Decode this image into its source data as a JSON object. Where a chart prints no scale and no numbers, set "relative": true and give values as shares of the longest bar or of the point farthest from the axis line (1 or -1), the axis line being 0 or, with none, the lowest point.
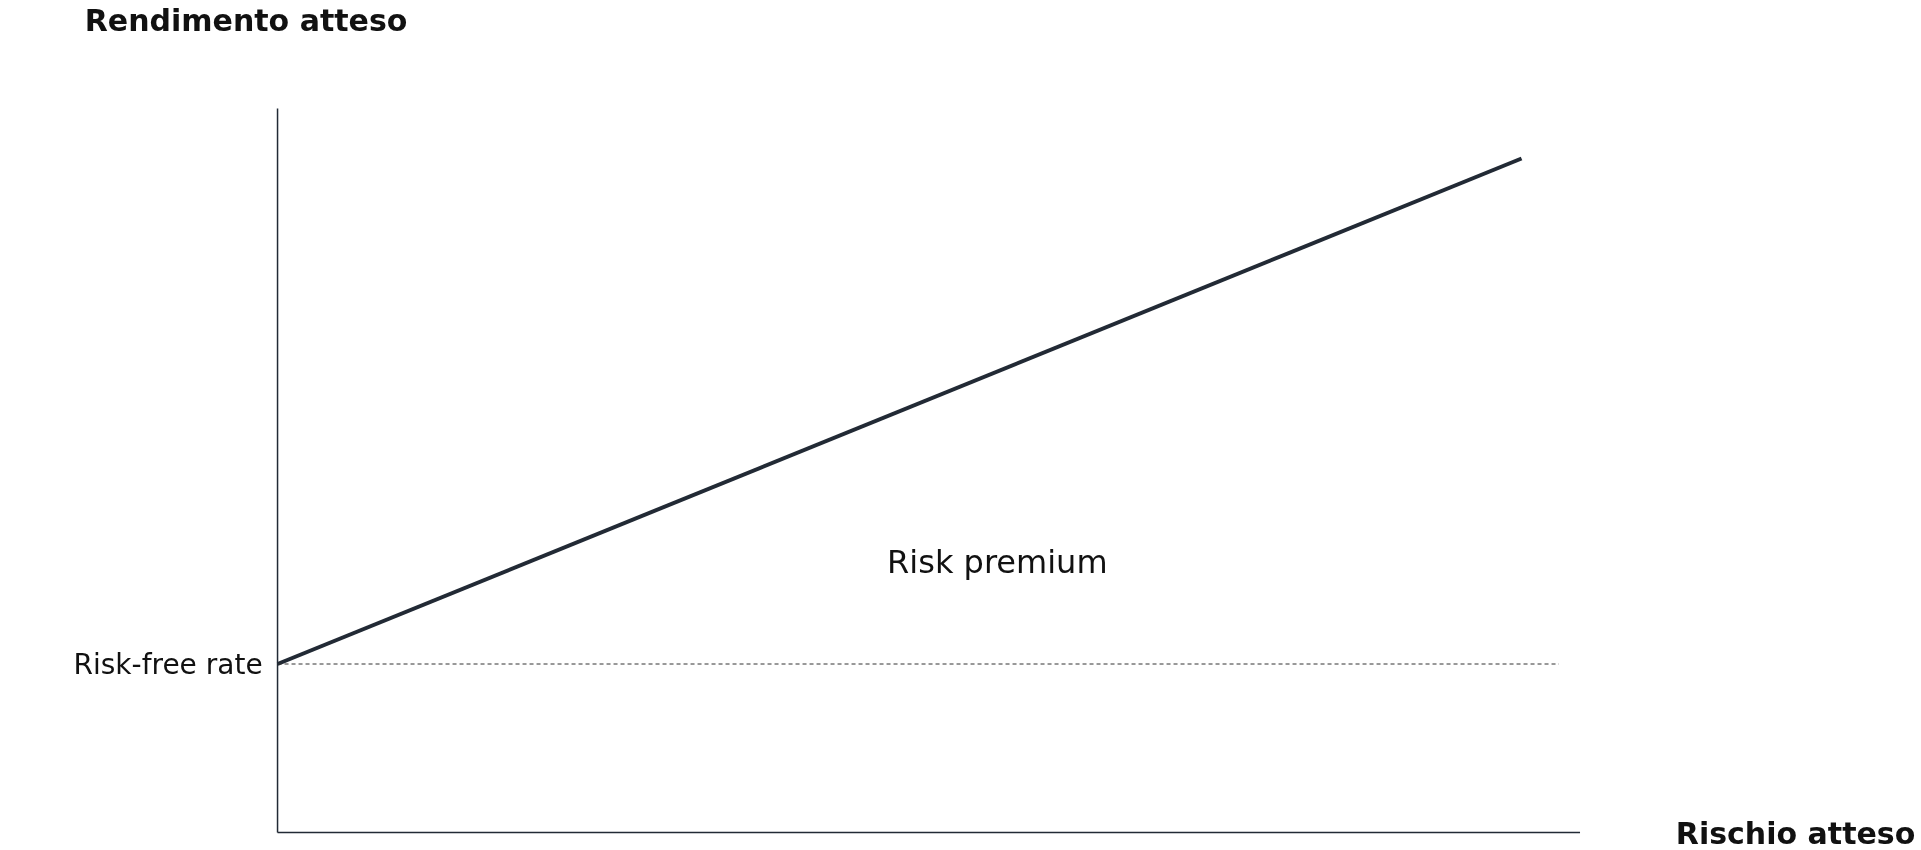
{
  "chart_data": {
    "type": "line",
    "relative": true,
    "xlabel": "Rischio atteso",
    "ylabel": "Rendimento atteso",
    "categories": [
      null,
      null
    ],
    "series": [
      {
        "color": "#222a35",
        "values": [
          0.25,
          1
        ]
      }
    ],
    "ref_lines": [
      {
        "axis": "y",
        "value": 0.25,
        "label": "Risk-free rate",
        "color": "#333333",
        "line_style": "dashed"
      }
    ],
    "annotations": [
      "Risk premium"
    ],
    "marker": "none",
    "line_style": "solid"
  }
}
